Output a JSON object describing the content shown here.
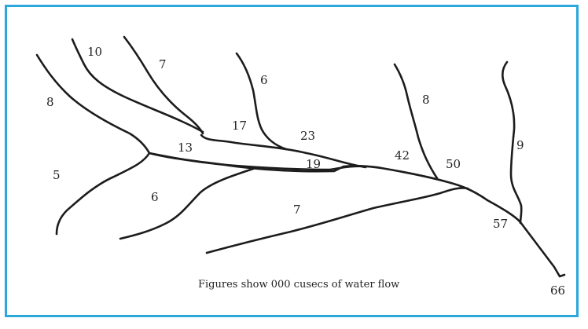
{
  "colors": {
    "frame": "#29a8dc",
    "river": "#1c1c1c",
    "text": "#222222"
  },
  "flow_labels": [
    "10",
    "7",
    "6",
    "8",
    "8",
    "17",
    "23",
    "13",
    "19",
    "42",
    "50",
    "9",
    "5",
    "6",
    "7",
    "57",
    "66"
  ],
  "caption": "Figures show 000 cusecs of water flow"
}
